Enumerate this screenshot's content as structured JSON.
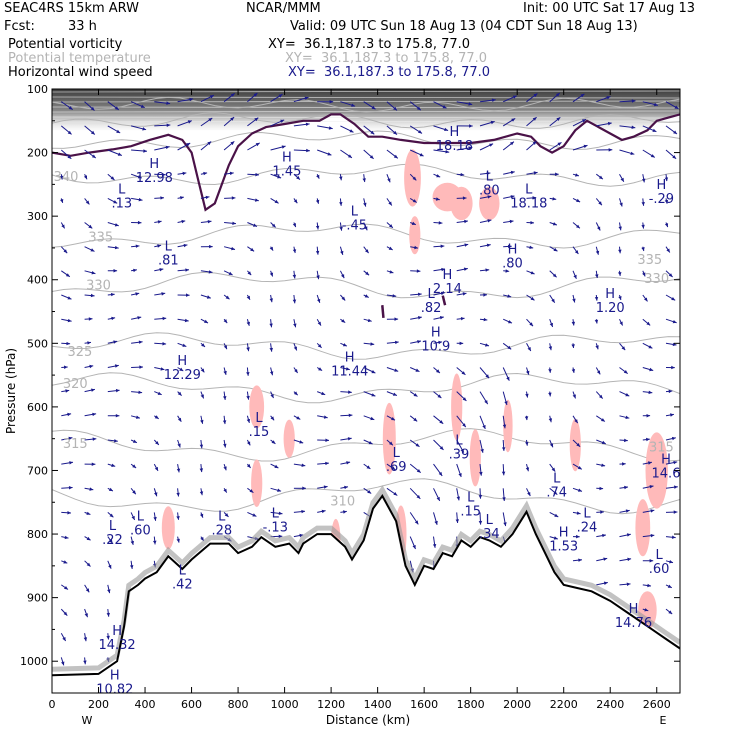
{
  "header": {
    "model": "SEAC4RS 15km ARW",
    "center": "NCAR/MMM",
    "init": "Init: 00 UTC Sat 17 Aug 13",
    "fcst_label": "Fcst:",
    "fcst_value": "33 h",
    "valid": "Valid: 09 UTC Sun 18 Aug 13 (04 CDT Sun 18 Aug 13)",
    "fields": [
      {
        "name": "Potential vorticity",
        "xy": "XY=  36.1,187.3 to 175.8, 77.0"
      },
      {
        "name": "Potential temperature",
        "xy": "XY=  36.1,187.3 to 175.8, 77.0"
      },
      {
        "name": "Horizontal wind speed",
        "xy": "XY=  36.1,187.3 to 175.8, 77.0"
      }
    ]
  },
  "colors": {
    "pv_fill": "#ffbaba",
    "pv_contour": "#4a1248",
    "theta": "#b4b4b4",
    "wind": "#1a1a8c",
    "terrain": "#000000",
    "shade_dark": "#3c3c3c",
    "shade_light": "#d2d2d2"
  },
  "chart_data": {
    "type": "cross-section",
    "xlabel": "Distance (km)",
    "ylabel": "Pressure (hPa)",
    "xlim": [
      0,
      2700
    ],
    "ylim": [
      1050,
      100
    ],
    "x_ticks": [
      "0",
      "200",
      "400",
      "600",
      "800",
      "1000",
      "1200",
      "1400",
      "1600",
      "1800",
      "2000",
      "2200",
      "2400",
      "2600"
    ],
    "y_ticks": [
      "100",
      "200",
      "300",
      "400",
      "500",
      "600",
      "700",
      "800",
      "900",
      "1000"
    ],
    "x_ends": {
      "left": "W",
      "right": "E"
    },
    "theta_labels": [
      {
        "text": "340",
        "x": 60,
        "p": 245
      },
      {
        "text": "335",
        "x": 210,
        "p": 340
      },
      {
        "text": "330",
        "x": 200,
        "p": 415
      },
      {
        "text": "325",
        "x": 120,
        "p": 520
      },
      {
        "text": "320",
        "x": 100,
        "p": 570
      },
      {
        "text": "315",
        "x": 100,
        "p": 665
      },
      {
        "text": "310",
        "x": 1250,
        "p": 755
      },
      {
        "text": "335",
        "x": 2570,
        "p": 375
      },
      {
        "text": "330",
        "x": 2600,
        "p": 405
      },
      {
        "text": "315",
        "x": 2620,
        "p": 670
      }
    ],
    "extrema_labels": [
      {
        "letter": "H",
        "value": "12.98",
        "x": 440,
        "p": 235
      },
      {
        "letter": "L",
        "value": ".13",
        "x": 300,
        "p": 275
      },
      {
        "letter": "L",
        "value": ".81",
        "x": 500,
        "p": 365
      },
      {
        "letter": "L",
        "value": "-.45",
        "x": 1300,
        "p": 310
      },
      {
        "letter": "H",
        "value": "1.45",
        "x": 1010,
        "p": 225
      },
      {
        "letter": "H",
        "value": "18.18",
        "x": 1730,
        "p": 185
      },
      {
        "letter": "L",
        "value": ".80",
        "x": 1880,
        "p": 255
      },
      {
        "letter": "L",
        "value": "18.18",
        "x": 2050,
        "p": 275
      },
      {
        "letter": "H",
        "value": "-.29",
        "x": 2620,
        "p": 268
      },
      {
        "letter": "H",
        "value": ".80",
        "x": 1980,
        "p": 370
      },
      {
        "letter": "H",
        "value": "2.14",
        "x": 1700,
        "p": 410
      },
      {
        "letter": "L",
        "value": ".82",
        "x": 1630,
        "p": 440
      },
      {
        "letter": "H",
        "value": "1.20",
        "x": 2400,
        "p": 440
      },
      {
        "letter": "H",
        "value": "10.9",
        "x": 1650,
        "p": 500
      },
      {
        "letter": "H",
        "value": "11.44",
        "x": 1280,
        "p": 540
      },
      {
        "letter": "H",
        "value": "12.29",
        "x": 560,
        "p": 545
      },
      {
        "letter": "L",
        "value": ".15",
        "x": 890,
        "p": 635
      },
      {
        "letter": "L",
        "value": ".69",
        "x": 1480,
        "p": 690
      },
      {
        "letter": "L",
        "value": ".39",
        "x": 1750,
        "p": 670
      },
      {
        "letter": "L",
        "value": ".74",
        "x": 2170,
        "p": 730
      },
      {
        "letter": "H",
        "value": "14.6",
        "x": 2640,
        "p": 700
      },
      {
        "letter": "L",
        "value": ".15",
        "x": 1800,
        "p": 760
      },
      {
        "letter": "L",
        "value": ".24",
        "x": 2300,
        "p": 785
      },
      {
        "letter": "L",
        "value": ".34",
        "x": 1880,
        "p": 795
      },
      {
        "letter": "L",
        "value": ".22",
        "x": 260,
        "p": 805
      },
      {
        "letter": "L",
        "value": ".60",
        "x": 380,
        "p": 790
      },
      {
        "letter": "L",
        "value": ".28",
        "x": 730,
        "p": 790
      },
      {
        "letter": "L",
        "value": "-.13",
        "x": 960,
        "p": 785
      },
      {
        "letter": "H",
        "value": "1.53",
        "x": 2200,
        "p": 815
      },
      {
        "letter": "L",
        "value": ".60",
        "x": 2610,
        "p": 850
      },
      {
        "letter": "L",
        "value": ".42",
        "x": 560,
        "p": 875
      },
      {
        "letter": "H",
        "value": "14.32",
        "x": 280,
        "p": 970
      },
      {
        "letter": "H",
        "value": "10.82",
        "x": 270,
        "p": 1040
      },
      {
        "letter": "H",
        "value": "14.76",
        "x": 2500,
        "p": 935
      }
    ],
    "terrain": [
      [
        0,
        1022
      ],
      [
        200,
        1020
      ],
      [
        280,
        1000
      ],
      [
        310,
        945
      ],
      [
        330,
        890
      ],
      [
        370,
        880
      ],
      [
        400,
        870
      ],
      [
        450,
        860
      ],
      [
        500,
        835
      ],
      [
        560,
        855
      ],
      [
        600,
        840
      ],
      [
        680,
        815
      ],
      [
        760,
        815
      ],
      [
        800,
        830
      ],
      [
        860,
        820
      ],
      [
        900,
        805
      ],
      [
        960,
        820
      ],
      [
        1020,
        815
      ],
      [
        1060,
        830
      ],
      [
        1080,
        815
      ],
      [
        1140,
        800
      ],
      [
        1200,
        800
      ],
      [
        1260,
        820
      ],
      [
        1290,
        840
      ],
      [
        1340,
        810
      ],
      [
        1380,
        760
      ],
      [
        1420,
        740
      ],
      [
        1480,
        780
      ],
      [
        1520,
        850
      ],
      [
        1560,
        880
      ],
      [
        1600,
        850
      ],
      [
        1640,
        855
      ],
      [
        1680,
        830
      ],
      [
        1720,
        835
      ],
      [
        1760,
        810
      ],
      [
        1800,
        820
      ],
      [
        1840,
        805
      ],
      [
        1880,
        810
      ],
      [
        1930,
        820
      ],
      [
        1980,
        800
      ],
      [
        2040,
        765
      ],
      [
        2080,
        800
      ],
      [
        2120,
        830
      ],
      [
        2160,
        860
      ],
      [
        2200,
        880
      ],
      [
        2260,
        885
      ],
      [
        2320,
        890
      ],
      [
        2400,
        905
      ],
      [
        2480,
        925
      ],
      [
        2560,
        945
      ],
      [
        2640,
        965
      ],
      [
        2700,
        980
      ]
    ],
    "tropopause_pv2": [
      [
        0,
        200
      ],
      [
        80,
        205
      ],
      [
        160,
        200
      ],
      [
        260,
        195
      ],
      [
        340,
        190
      ],
      [
        420,
        180
      ],
      [
        500,
        172
      ],
      [
        560,
        180
      ],
      [
        600,
        200
      ],
      [
        630,
        245
      ],
      [
        650,
        275
      ],
      [
        660,
        290
      ],
      [
        700,
        280
      ],
      [
        730,
        250
      ],
      [
        760,
        220
      ],
      [
        800,
        190
      ],
      [
        860,
        170
      ],
      [
        920,
        160
      ],
      [
        1000,
        155
      ],
      [
        1080,
        150
      ],
      [
        1150,
        150
      ],
      [
        1200,
        140
      ],
      [
        1240,
        140
      ],
      [
        1300,
        155
      ],
      [
        1360,
        175
      ],
      [
        1420,
        175
      ],
      [
        1500,
        180
      ],
      [
        1600,
        185
      ],
      [
        1700,
        185
      ],
      [
        1800,
        185
      ],
      [
        1900,
        180
      ],
      [
        2000,
        170
      ],
      [
        2060,
        175
      ],
      [
        2100,
        190
      ],
      [
        2150,
        200
      ],
      [
        2200,
        190
      ],
      [
        2250,
        165
      ],
      [
        2300,
        150
      ],
      [
        2350,
        160
      ],
      [
        2400,
        170
      ],
      [
        2450,
        180
      ],
      [
        2500,
        175
      ],
      [
        2560,
        165
      ],
      [
        2600,
        150
      ],
      [
        2650,
        145
      ],
      [
        2700,
        140
      ]
    ],
    "pv_patches": [
      {
        "x": 1550,
        "p": 240,
        "w": 45,
        "h": 60
      },
      {
        "x": 1700,
        "p": 270,
        "w": 80,
        "h": 30
      },
      {
        "x": 1760,
        "p": 280,
        "w": 60,
        "h": 35
      },
      {
        "x": 1880,
        "p": 280,
        "w": 55,
        "h": 35
      },
      {
        "x": 1560,
        "p": 330,
        "w": 30,
        "h": 40
      },
      {
        "x": 880,
        "p": 600,
        "w": 40,
        "h": 45
      },
      {
        "x": 1020,
        "p": 650,
        "w": 30,
        "h": 40
      },
      {
        "x": 880,
        "p": 720,
        "w": 30,
        "h": 50
      },
      {
        "x": 1450,
        "p": 650,
        "w": 35,
        "h": 75
      },
      {
        "x": 1740,
        "p": 600,
        "w": 30,
        "h": 70
      },
      {
        "x": 1820,
        "p": 680,
        "w": 30,
        "h": 60
      },
      {
        "x": 1960,
        "p": 630,
        "w": 25,
        "h": 55
      },
      {
        "x": 2250,
        "p": 660,
        "w": 30,
        "h": 55
      },
      {
        "x": 2600,
        "p": 700,
        "w": 60,
        "h": 80
      },
      {
        "x": 2540,
        "p": 790,
        "w": 40,
        "h": 60
      },
      {
        "x": 500,
        "p": 790,
        "w": 35,
        "h": 45
      },
      {
        "x": 1220,
        "p": 810,
        "w": 25,
        "h": 45
      },
      {
        "x": 1500,
        "p": 800,
        "w": 30,
        "h": 60
      },
      {
        "x": 2560,
        "p": 920,
        "w": 50,
        "h": 40
      },
      {
        "x": 180,
        "p": 1030,
        "w": 40,
        "h": 15
      }
    ]
  }
}
